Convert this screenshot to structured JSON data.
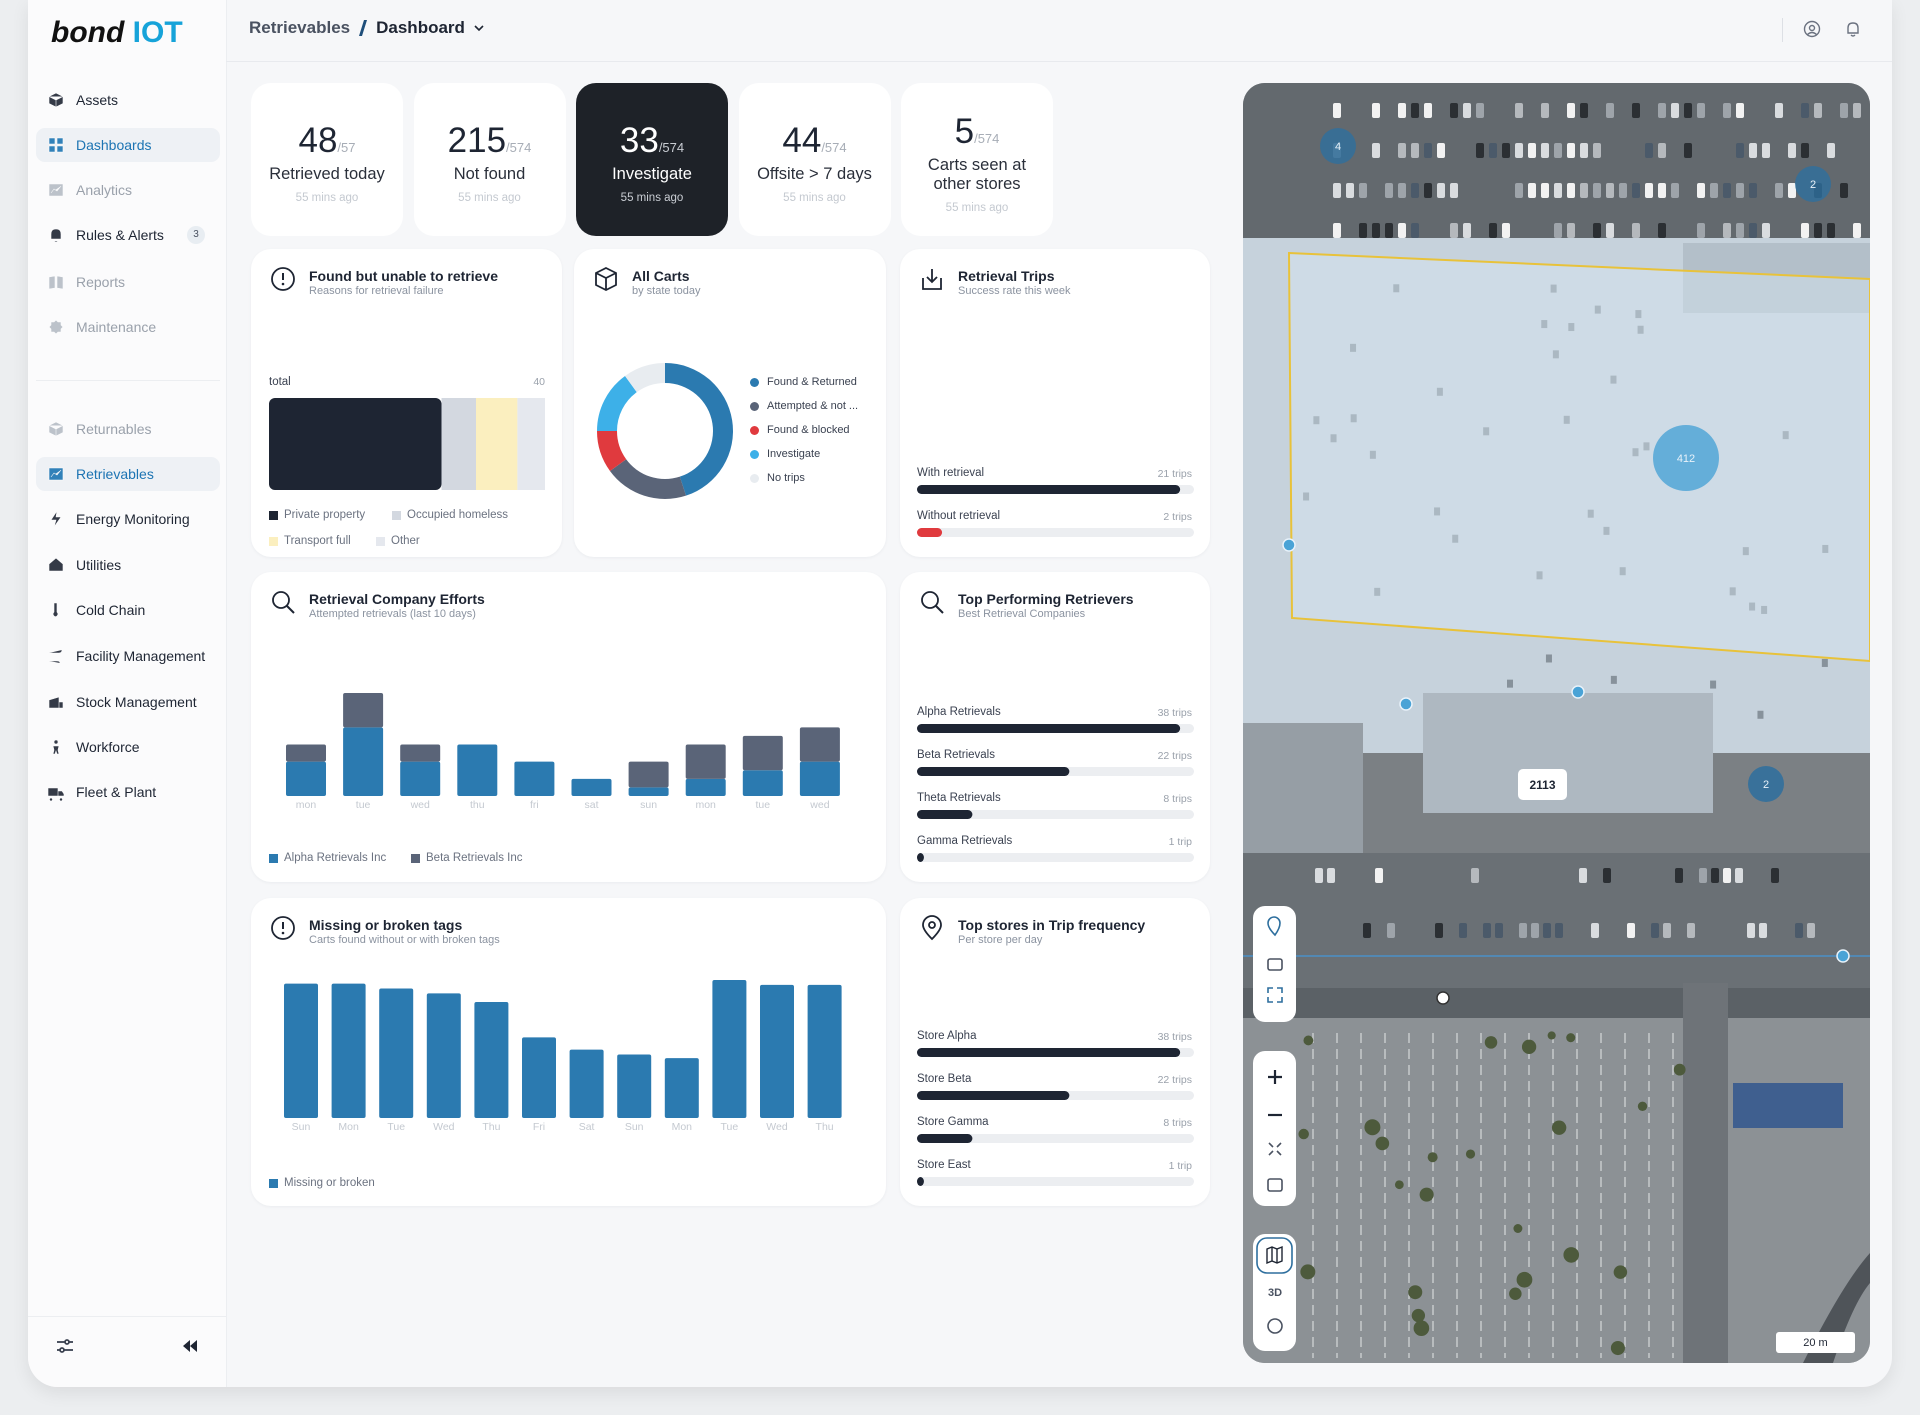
{
  "brand": {
    "name": "bond",
    "suffix": "IOT"
  },
  "breadcrumb": {
    "parent": "Retrievables",
    "current": "Dashboard"
  },
  "sidebar": {
    "primary": [
      {
        "label": "Assets"
      },
      {
        "label": "Dashboards",
        "active": true
      },
      {
        "label": "Analytics",
        "disabled": true
      },
      {
        "label": "Rules & Alerts",
        "badge": 3
      },
      {
        "label": "Reports",
        "disabled": true
      },
      {
        "label": "Maintenance",
        "disabled": true
      }
    ],
    "secondary": [
      {
        "label": "Returnables",
        "disabled": true
      },
      {
        "label": "Retrievables",
        "active": true
      },
      {
        "label": "Energy Monitoring"
      },
      {
        "label": "Utilities"
      },
      {
        "label": "Cold Chain"
      },
      {
        "label": "Facility Management"
      },
      {
        "label": "Stock Management"
      },
      {
        "label": "Workforce"
      },
      {
        "label": "Fleet & Plant"
      }
    ]
  },
  "kpis": [
    {
      "value": 48,
      "total": "/57",
      "label": "Retrieved today",
      "time": "55 mins ago"
    },
    {
      "value": 215,
      "total": "/574",
      "label": "Not found",
      "time": "55 mins ago"
    },
    {
      "value": 33,
      "total": "/574",
      "label": "Investigate",
      "time": "55 mins ago",
      "highlighted": true
    },
    {
      "value": 44,
      "total": "/574",
      "label": "Offsite > 7 days",
      "time": "55 mins ago"
    },
    {
      "value": 5,
      "total": "/574",
      "label": "Carts seen at other stores",
      "time": "55 mins ago"
    }
  ],
  "failures": {
    "title": "Found but unable to retrieve",
    "subtitle": "Reasons for retrieval failure",
    "total_label": "total",
    "total": 40,
    "segments": [
      {
        "name": "Private property",
        "color": "#1e2533",
        "value": 25
      },
      {
        "name": "Occupied homeless",
        "color": "#d3d8e0",
        "value": 5
      },
      {
        "name": "Transport full",
        "color": "#fbefbf",
        "value": 6
      },
      {
        "name": "Other",
        "color": "#e5e8ee",
        "value": 4
      }
    ]
  },
  "all_carts": {
    "title": "All Carts",
    "subtitle": "by state today",
    "segments": [
      {
        "name": "Found & Returned",
        "color": "#2b7ab0",
        "value": 45
      },
      {
        "name": "Attempted & not ...",
        "color": "#5a6478",
        "value": 20
      },
      {
        "name": "Found & blocked",
        "color": "#e03a3e",
        "value": 10
      },
      {
        "name": "Investigate",
        "color": "#3db0e8",
        "value": 15
      },
      {
        "name": "No trips",
        "color": "#e8ecf0",
        "value": 10
      }
    ]
  },
  "trips": {
    "title": "Retrieval Trips",
    "subtitle": "Success rate this week",
    "rows": [
      {
        "label": "With retrieval",
        "value": 21,
        "value_label": "21 trips",
        "color": "#1e2533"
      },
      {
        "label": "Without retrieval",
        "value": 2,
        "value_label": "2 trips",
        "color": "#e03a3e"
      }
    ]
  },
  "efforts": {
    "title": "Retrieval Company Efforts",
    "subtitle": "Attempted retrievals (last 10 days)",
    "categories": [
      "mon",
      "tue",
      "wed",
      "thu",
      "fri",
      "sat",
      "sun",
      "mon",
      "tue",
      "wed"
    ],
    "series": [
      {
        "name": "Alpha Retrievals Inc",
        "color": "#2b7ab0",
        "values": [
          4,
          8,
          4,
          6,
          4,
          2,
          1,
          2,
          3,
          4
        ]
      },
      {
        "name": "Beta Retrievals Inc",
        "color": "#5a6478",
        "values": [
          2,
          4,
          2,
          0,
          0,
          0,
          3,
          4,
          4,
          4
        ]
      }
    ]
  },
  "retrievers": {
    "title": "Top Performing Retrievers",
    "subtitle": "Best Retrieval Companies",
    "rows": [
      {
        "label": "Alpha Retrievals",
        "value": 38,
        "value_label": "38 trips",
        "color": "#1e2533"
      },
      {
        "label": "Beta Retrievals",
        "value": 22,
        "value_label": "22 trips",
        "color": "#1e2533"
      },
      {
        "label": "Theta Retrievals",
        "value": 8,
        "value_label": "8 trips",
        "color": "#1e2533"
      },
      {
        "label": "Gamma Retrievals",
        "value": 1,
        "value_label": "1 trip",
        "color": "#1e2533"
      }
    ]
  },
  "tags": {
    "title": "Missing or broken tags",
    "subtitle": "Carts found without or with broken tags",
    "categories": [
      "Sun",
      "Mon",
      "Tue",
      "Wed",
      "Thu",
      "Fri",
      "Sat",
      "Sun",
      "Mon",
      "Tue",
      "Wed",
      "Thu"
    ],
    "series": [
      {
        "name": "Missing or broken",
        "color": "#2b7ab0",
        "values": [
          11,
          11,
          10.6,
          10.2,
          9.5,
          6.6,
          5.6,
          5.2,
          4.9,
          11.3,
          10.9,
          10.9
        ]
      }
    ]
  },
  "stores": {
    "title": "Top stores in Trip frequency",
    "subtitle": "Per store per day",
    "rows": [
      {
        "label": "Store Alpha",
        "value": 38,
        "value_label": "38 trips",
        "color": "#1e2533"
      },
      {
        "label": "Store Beta",
        "value": 22,
        "value_label": "22 trips",
        "color": "#1e2533"
      },
      {
        "label": "Store Gamma",
        "value": 8,
        "value_label": "8 trips",
        "color": "#1e2533"
      },
      {
        "label": "Store East",
        "value": 1,
        "value_label": "1 trip",
        "color": "#1e2533"
      }
    ]
  },
  "map": {
    "clusters": [
      {
        "count": 4
      },
      {
        "count": 2
      },
      {
        "count": 412
      },
      {
        "count": 2
      }
    ],
    "building_label": 2113,
    "control_3d": "3D",
    "scale": "20 m"
  }
}
